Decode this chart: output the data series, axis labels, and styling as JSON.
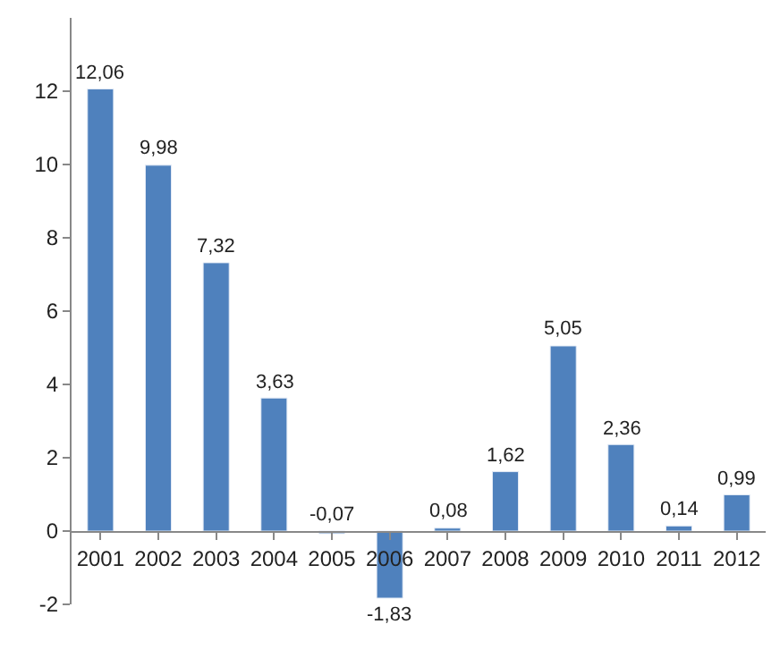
{
  "chart_data": {
    "type": "bar",
    "categories": [
      "2001",
      "2002",
      "2003",
      "2004",
      "2005",
      "2006",
      "2007",
      "2008",
      "2009",
      "2010",
      "2011",
      "2012"
    ],
    "values": [
      12.06,
      9.98,
      7.32,
      3.63,
      -0.07,
      -1.83,
      0.08,
      1.62,
      5.05,
      2.36,
      0.14,
      0.99
    ],
    "value_labels": [
      "12,06",
      "9,98",
      "7,32",
      "3,63",
      "-0,07",
      "-1,83",
      "0,08",
      "1,62",
      "5,05",
      "2,36",
      "0,14",
      "0,99"
    ],
    "color": "#4f81bd",
    "ylim": [
      -2,
      14
    ],
    "yticks": [
      -2,
      0,
      2,
      4,
      6,
      8,
      10,
      12
    ],
    "legend": false
  }
}
